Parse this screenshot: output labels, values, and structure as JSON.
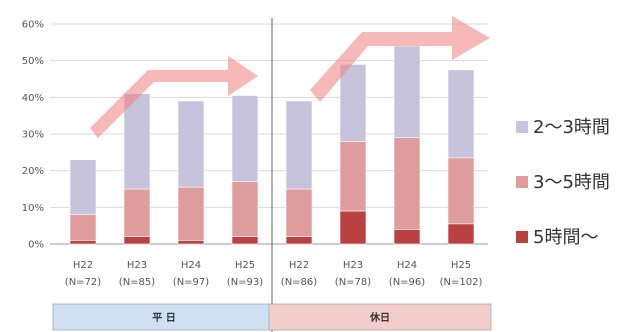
{
  "chart_data": {
    "type": "bar",
    "stacked": true,
    "categories": [
      [
        "H22",
        "(N=72)"
      ],
      [
        "H23",
        "(N=85)"
      ],
      [
        "H24",
        "(N=97)"
      ],
      [
        "H25",
        "(N=93)"
      ],
      [
        "H22",
        "(N=86)"
      ],
      [
        "H23",
        "(N=78)"
      ],
      [
        "H24",
        "(N=96)"
      ],
      [
        "H25",
        "(N=102)"
      ]
    ],
    "groups": [
      {
        "label": "平 日",
        "color": "#cfe0f2",
        "from": 0,
        "to": 3
      },
      {
        "label": "休日",
        "color": "#f3cccc",
        "from": 4,
        "to": 7
      }
    ],
    "series": [
      {
        "name": "5時間〜",
        "color": "#b94141",
        "values": [
          1,
          2,
          1,
          2,
          2,
          9,
          4,
          5.5
        ]
      },
      {
        "name": "3〜5時間",
        "color": "#df9c9c",
        "values": [
          7,
          13,
          14.5,
          15,
          13,
          19,
          25,
          18
        ]
      },
      {
        "name": "2〜3時間",
        "color": "#c8c3dc",
        "values": [
          15,
          26,
          23.5,
          23.5,
          24,
          21,
          25,
          24
        ]
      }
    ],
    "legend_order": [
      2,
      1,
      0
    ],
    "legend_position": "right",
    "ylim": [
      0,
      60
    ],
    "yticks": [
      "0%",
      "10%",
      "20%",
      "30%",
      "40%",
      "50%",
      "60%"
    ],
    "grid": true,
    "title": "",
    "xlabel": "",
    "ylabel": ""
  }
}
